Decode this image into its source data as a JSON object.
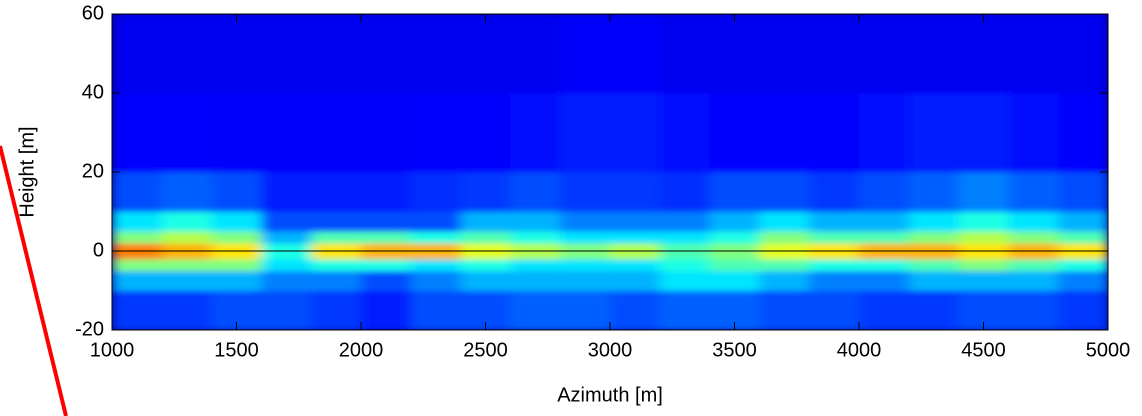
{
  "chart_data": {
    "type": "heatmap",
    "x_label": "Azimuth [m]",
    "y_label": "Height [m]",
    "colormap": "jet",
    "xbins": [
      1000,
      1200,
      1400,
      1600,
      1800,
      2000,
      2200,
      2400,
      2600,
      2800,
      3000,
      3200,
      3400,
      3600,
      3800,
      4000,
      4200,
      4400,
      4600,
      4800,
      5000
    ],
    "ybins": [
      -20,
      -10,
      -5,
      -2,
      2,
      5,
      10,
      20,
      40,
      60
    ],
    "z": [
      [
        0.18,
        0.18,
        0.2,
        0.2,
        0.18,
        0.15,
        0.2,
        0.2,
        0.22,
        0.22,
        0.2,
        0.22,
        0.22,
        0.2,
        0.2,
        0.18,
        0.18,
        0.2,
        0.2,
        0.18
      ],
      [
        0.3,
        0.3,
        0.3,
        0.25,
        0.25,
        0.2,
        0.25,
        0.3,
        0.3,
        0.3,
        0.3,
        0.35,
        0.35,
        0.3,
        0.25,
        0.25,
        0.3,
        0.3,
        0.3,
        0.25
      ],
      [
        0.5,
        0.5,
        0.5,
        0.35,
        0.4,
        0.4,
        0.35,
        0.4,
        0.35,
        0.35,
        0.35,
        0.4,
        0.45,
        0.45,
        0.4,
        0.4,
        0.45,
        0.5,
        0.45,
        0.4
      ],
      [
        0.75,
        0.7,
        0.65,
        0.4,
        0.65,
        0.7,
        0.7,
        0.6,
        0.55,
        0.5,
        0.55,
        0.45,
        0.5,
        0.6,
        0.65,
        0.7,
        0.7,
        0.65,
        0.7,
        0.65
      ],
      [
        0.5,
        0.55,
        0.5,
        0.3,
        0.45,
        0.45,
        0.4,
        0.45,
        0.4,
        0.35,
        0.35,
        0.35,
        0.4,
        0.5,
        0.45,
        0.45,
        0.5,
        0.55,
        0.5,
        0.45
      ],
      [
        0.35,
        0.4,
        0.35,
        0.2,
        0.2,
        0.2,
        0.2,
        0.3,
        0.3,
        0.25,
        0.25,
        0.25,
        0.3,
        0.35,
        0.3,
        0.3,
        0.35,
        0.4,
        0.35,
        0.3
      ],
      [
        0.2,
        0.22,
        0.2,
        0.15,
        0.15,
        0.15,
        0.17,
        0.18,
        0.2,
        0.18,
        0.18,
        0.17,
        0.2,
        0.2,
        0.18,
        0.2,
        0.22,
        0.25,
        0.22,
        0.2
      ],
      [
        0.13,
        0.13,
        0.12,
        0.12,
        0.12,
        0.12,
        0.13,
        0.13,
        0.14,
        0.15,
        0.15,
        0.14,
        0.13,
        0.13,
        0.13,
        0.14,
        0.15,
        0.15,
        0.14,
        0.13
      ],
      [
        0.11,
        0.11,
        0.11,
        0.11,
        0.11,
        0.11,
        0.11,
        0.11,
        0.11,
        0.12,
        0.12,
        0.11,
        0.11,
        0.11,
        0.11,
        0.11,
        0.11,
        0.11,
        0.11,
        0.11
      ]
    ],
    "reference_line": 0,
    "xlim": [
      1000,
      5000
    ],
    "xticks": [
      1000,
      1500,
      2000,
      2500,
      3000,
      3500,
      4000,
      4500,
      5000
    ],
    "ylim": [
      -20,
      60
    ],
    "yticks": [
      -20,
      0,
      20,
      40,
      60
    ]
  }
}
